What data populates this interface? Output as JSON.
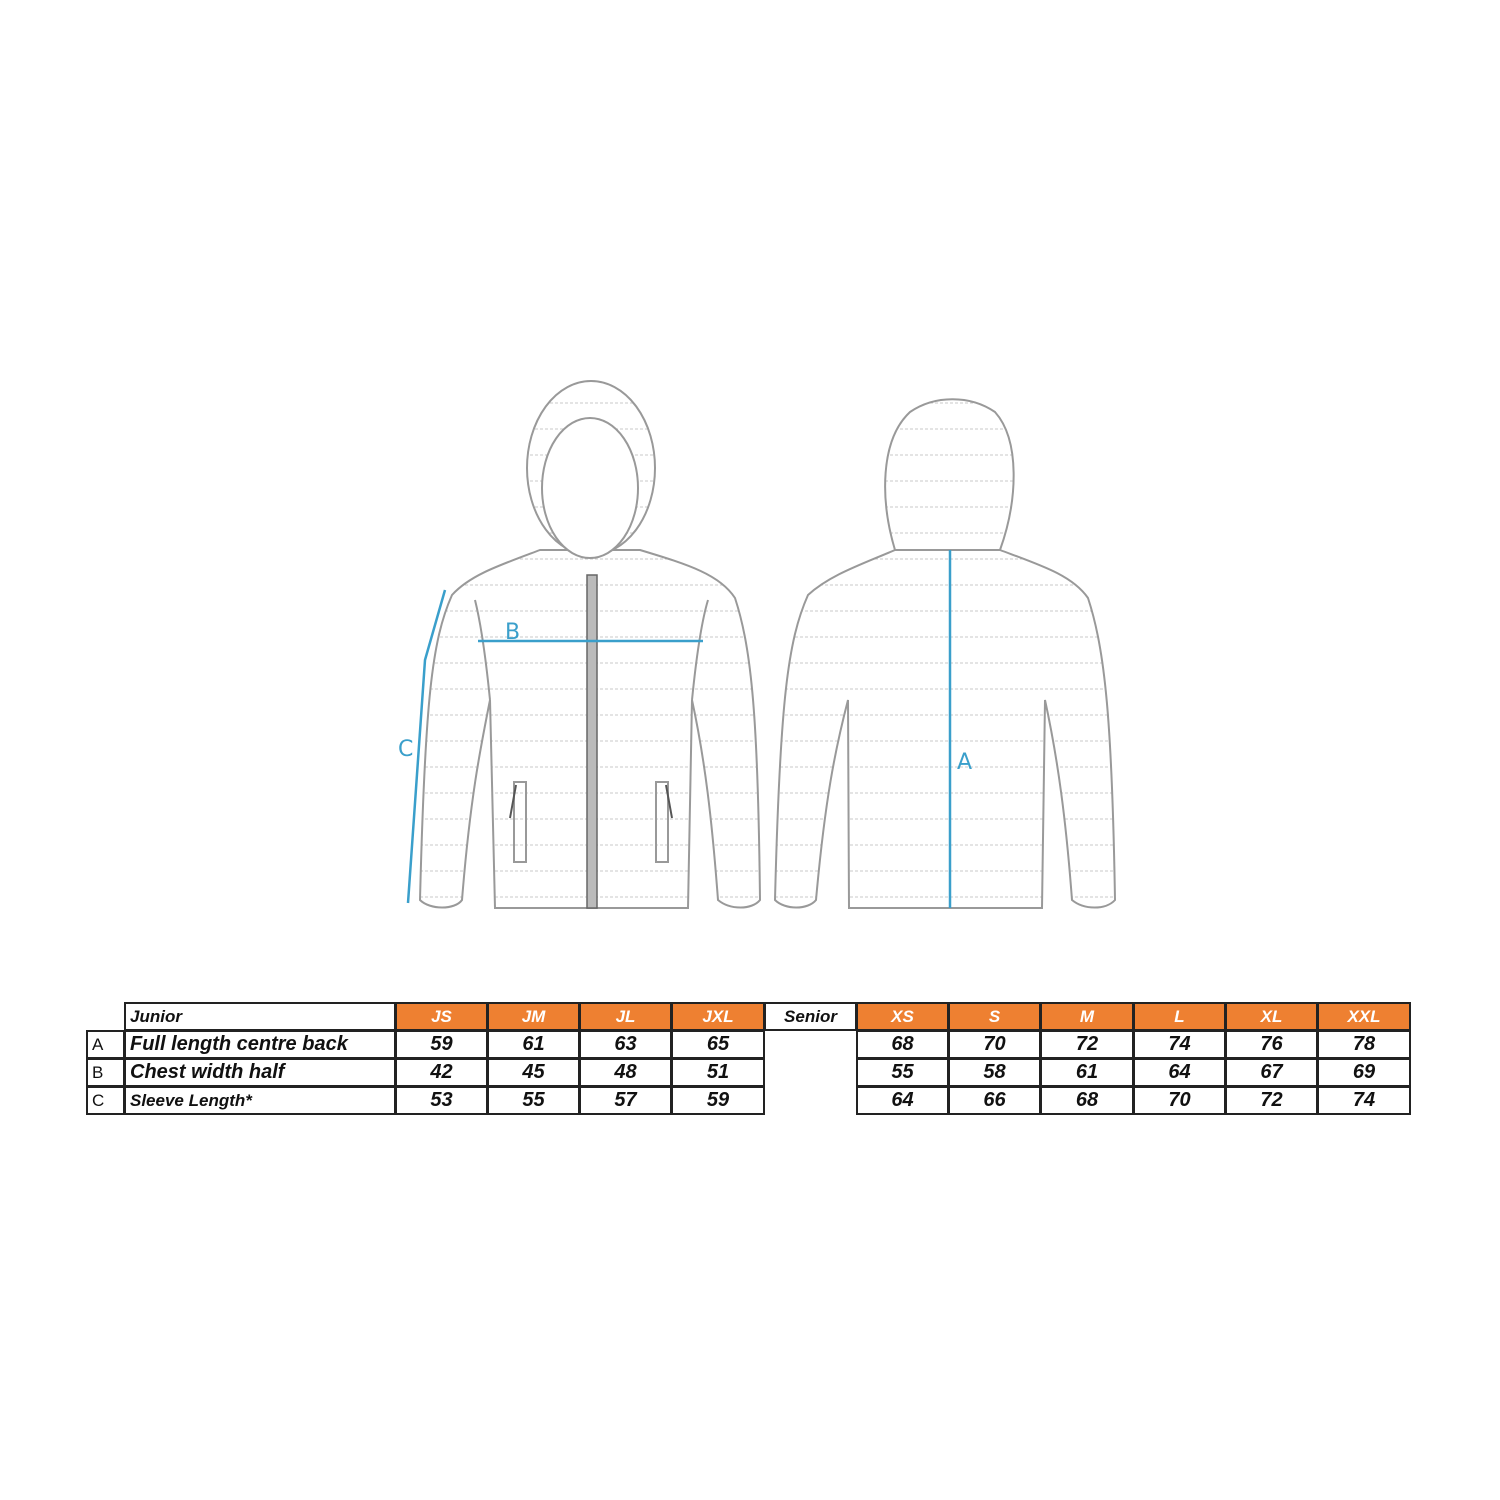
{
  "diagram": {
    "measure_labels": {
      "a": "A",
      "b": "B",
      "c": "C"
    },
    "measure_color": "#3a9fcb",
    "header_color": "#ee8031"
  },
  "table": {
    "junior": {
      "title": "Junior",
      "sizes": [
        "JS",
        "JM",
        "JL",
        "JXL"
      ]
    },
    "senior": {
      "title": "Senior",
      "sizes": [
        "XS",
        "S",
        "M",
        "L",
        "XL",
        "XXL"
      ]
    },
    "rows": [
      {
        "letter": "A",
        "label": "Full length centre back",
        "junior": [
          "59",
          "61",
          "63",
          "65"
        ],
        "senior": [
          "68",
          "70",
          "72",
          "74",
          "76",
          "78"
        ]
      },
      {
        "letter": "B",
        "label": "Chest width half",
        "junior": [
          "42",
          "45",
          "48",
          "51"
        ],
        "senior": [
          "55",
          "58",
          "61",
          "64",
          "67",
          "69"
        ]
      },
      {
        "letter": "C",
        "label": "Sleeve Length*",
        "junior": [
          "53",
          "55",
          "57",
          "59"
        ],
        "senior": [
          "64",
          "66",
          "68",
          "70",
          "72",
          "74"
        ]
      }
    ]
  }
}
